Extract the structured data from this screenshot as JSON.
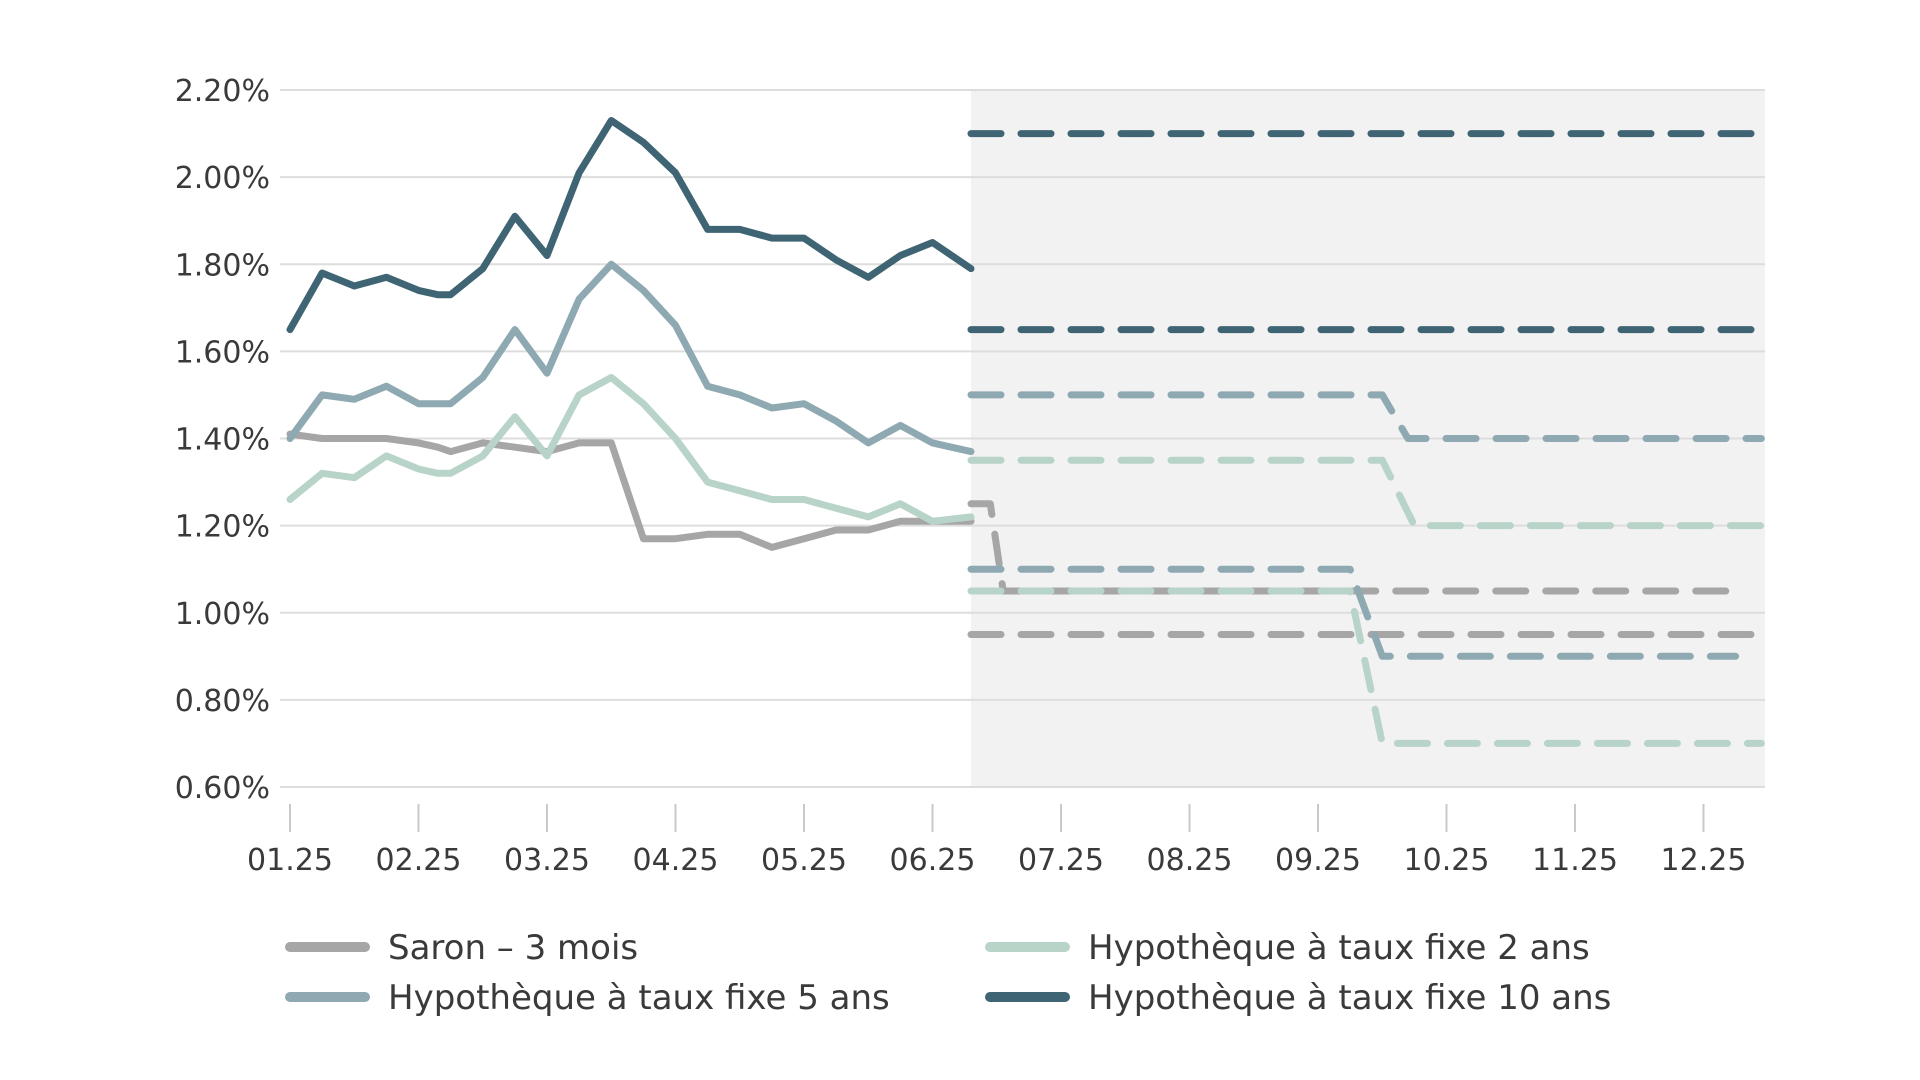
{
  "chart_data": {
    "type": "line",
    "title": "",
    "xlabel": "",
    "ylabel": "",
    "x_ticks": [
      "01.25",
      "02.25",
      "03.25",
      "04.25",
      "05.25",
      "06.25",
      "07.25",
      "08.25",
      "09.25",
      "10.25",
      "11.25",
      "12.25"
    ],
    "y_ticks": [
      "0.60%",
      "0.80%",
      "1.00%",
      "1.20%",
      "1.40%",
      "1.60%",
      "1.80%",
      "2.00%",
      "2.20%"
    ],
    "ylim": [
      0.6,
      2.2
    ],
    "xlim": [
      0,
      11.45
    ],
    "grid": "horizontal",
    "forecast_shading_from": 5.3,
    "legend_placement": "bottom",
    "series": [
      {
        "name": "Saron – 3 mois",
        "color": "#a6a6a6",
        "x": [
          0,
          0.25,
          0.5,
          0.75,
          1,
          1.15,
          1.25,
          1.5,
          1.75,
          2,
          2.25,
          2.5,
          2.75,
          3,
          3.25,
          3.5,
          3.75,
          4,
          4.25,
          4.5,
          4.75,
          5,
          5.3
        ],
        "values": [
          1.41,
          1.4,
          1.4,
          1.4,
          1.39,
          1.38,
          1.37,
          1.39,
          1.38,
          1.37,
          1.39,
          1.39,
          1.17,
          1.17,
          1.18,
          1.18,
          1.15,
          1.17,
          1.19,
          1.19,
          1.21,
          1.21,
          1.21
        ],
        "forecast": [
          {
            "x": [
              5.3,
              5.45,
              5.55,
              5.75,
              11.25
            ],
            "values": [
              1.25,
              1.25,
              1.05,
              1.05,
              1.05
            ]
          },
          {
            "x": [
              5.3,
              11.45
            ],
            "values": [
              0.95,
              0.95
            ]
          }
        ]
      },
      {
        "name": "Hypothèque à taux fixe 5 ans",
        "color": "#8ea9b1",
        "x": [
          0,
          0.25,
          0.5,
          0.75,
          1,
          1.25,
          1.5,
          1.75,
          2,
          2.25,
          2.5,
          2.75,
          3,
          3.25,
          3.5,
          3.75,
          4,
          4.25,
          4.5,
          4.75,
          5,
          5.3
        ],
        "values": [
          1.4,
          1.5,
          1.49,
          1.52,
          1.48,
          1.48,
          1.54,
          1.65,
          1.55,
          1.72,
          1.8,
          1.74,
          1.66,
          1.52,
          1.5,
          1.47,
          1.48,
          1.44,
          1.39,
          1.43,
          1.39,
          1.37
        ],
        "forecast": [
          {
            "x": [
              5.3,
              8.5,
              8.7,
              11.45
            ],
            "values": [
              1.5,
              1.5,
              1.4,
              1.4
            ]
          },
          {
            "x": [
              5.3,
              8.25,
              8.5,
              11.25
            ],
            "values": [
              1.1,
              1.1,
              0.9,
              0.9
            ]
          }
        ]
      },
      {
        "name": "Hypothèque à taux fixe 2 ans",
        "color": "#b8d3c8",
        "x": [
          0,
          0.25,
          0.5,
          0.75,
          1,
          1.15,
          1.25,
          1.5,
          1.75,
          2,
          2.25,
          2.5,
          2.75,
          3,
          3.25,
          3.5,
          3.75,
          4,
          4.25,
          4.5,
          4.75,
          5,
          5.3
        ],
        "values": [
          1.26,
          1.32,
          1.31,
          1.36,
          1.33,
          1.32,
          1.32,
          1.36,
          1.45,
          1.36,
          1.5,
          1.54,
          1.48,
          1.4,
          1.3,
          1.28,
          1.26,
          1.26,
          1.24,
          1.22,
          1.25,
          1.21,
          1.22
        ],
        "forecast": [
          {
            "x": [
              5.3,
              8.5,
              8.75,
              11.45
            ],
            "values": [
              1.35,
              1.35,
              1.2,
              1.2
            ]
          },
          {
            "x": [
              5.3,
              8.25,
              8.5,
              11.45
            ],
            "values": [
              1.05,
              1.05,
              0.7,
              0.7
            ]
          }
        ]
      },
      {
        "name": "Hypothèque à taux fixe 10 ans",
        "color": "#3f6575",
        "x": [
          0,
          0.25,
          0.5,
          0.75,
          1,
          1.15,
          1.25,
          1.5,
          1.75,
          2,
          2.25,
          2.5,
          2.75,
          3,
          3.25,
          3.5,
          3.75,
          4,
          4.25,
          4.5,
          4.75,
          5,
          5.3
        ],
        "values": [
          1.65,
          1.78,
          1.75,
          1.77,
          1.74,
          1.73,
          1.73,
          1.79,
          1.91,
          1.82,
          2.01,
          2.13,
          2.08,
          2.01,
          1.88,
          1.88,
          1.86,
          1.86,
          1.81,
          1.77,
          1.82,
          1.85,
          1.79
        ],
        "forecast": [
          {
            "x": [
              5.3,
              11.45
            ],
            "values": [
              2.1,
              2.1
            ]
          },
          {
            "x": [
              5.3,
              11.45
            ],
            "values": [
              1.65,
              1.65
            ]
          }
        ]
      }
    ],
    "legend": [
      {
        "label": "Saron – 3 mois",
        "color": "#a6a6a6"
      },
      {
        "label": "Hypothèque à taux fixe 2 ans",
        "color": "#b8d3c8"
      },
      {
        "label": "Hypothèque à taux fixe 5 ans",
        "color": "#8ea9b1"
      },
      {
        "label": "Hypothèque à taux fixe 10 ans",
        "color": "#3f6575"
      }
    ],
    "colors": {
      "grid": "#dddddd",
      "axis": "#c9c9c9",
      "forecast_bg": "#f2f2f2",
      "text": "#3a3a3a"
    }
  }
}
